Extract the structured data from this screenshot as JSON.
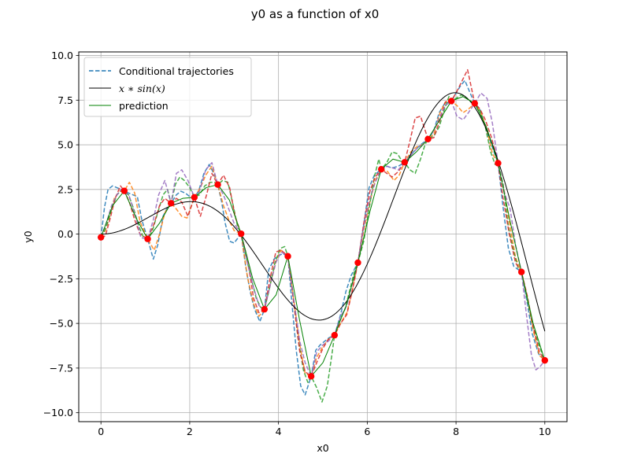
{
  "chart_data": {
    "type": "line",
    "title": "y0 as a function of x0",
    "xlabel": "x0",
    "ylabel": "y0",
    "xlim": [
      -0.5,
      10.5
    ],
    "ylim": [
      -10.5,
      10.2
    ],
    "xticks": [
      0,
      2,
      4,
      6,
      8,
      10
    ],
    "xtick_labels": [
      "0",
      "2",
      "4",
      "6",
      "8",
      "10"
    ],
    "yticks": [
      -10.0,
      -7.5,
      -5.0,
      -2.5,
      0.0,
      2.5,
      5.0,
      7.5,
      10.0
    ],
    "ytick_labels": [
      "−10.0",
      "−7.5",
      "−5.0",
      "−2.5",
      "0.0",
      "2.5",
      "5.0",
      "7.5",
      "10.0"
    ],
    "grid": true,
    "legend_position": "top-left",
    "legend": [
      {
        "label": "Conditional trajectories",
        "style": "dashed",
        "color": "#1f77b4"
      },
      {
        "label": "x ∗ sin(x)",
        "style": "solid",
        "color": "#000000"
      },
      {
        "label": "prediction",
        "style": "solid",
        "color": "#008000"
      }
    ],
    "colors": {
      "grid": "#b0b0b0",
      "observations": "#ff0000",
      "prediction": "#008000",
      "reference": "#000000",
      "trajectories": [
        "#1f77b4",
        "#ff7f0e",
        "#2ca02c",
        "#d62728",
        "#9467bd"
      ]
    },
    "observations": {
      "x": [
        0.0,
        0.526,
        1.053,
        1.579,
        2.105,
        2.632,
        3.158,
        3.684,
        4.211,
        4.737,
        5.263,
        5.789,
        6.316,
        6.842,
        7.368,
        7.895,
        8.421,
        8.947,
        9.474,
        10.0
      ],
      "y": [
        -0.18,
        2.42,
        -0.27,
        1.73,
        2.06,
        2.77,
        0.02,
        -4.21,
        -1.24,
        -7.96,
        -5.66,
        -1.6,
        3.63,
        4.02,
        5.32,
        7.45,
        7.32,
        3.97,
        -2.12,
        -7.07
      ]
    },
    "reference_curve": {
      "name": "x ∗ sin(x)",
      "function": "x*sin(x)",
      "domain": [
        0,
        10
      ]
    },
    "series": [
      {
        "name": "prediction",
        "x": [
          0.0,
          0.263,
          0.526,
          0.79,
          1.053,
          1.316,
          1.579,
          1.842,
          2.105,
          2.368,
          2.632,
          2.895,
          3.158,
          3.421,
          3.684,
          3.947,
          4.211,
          4.474,
          4.737,
          5.0,
          5.263,
          5.526,
          5.789,
          6.053,
          6.316,
          6.579,
          6.842,
          7.105,
          7.368,
          7.632,
          7.895,
          8.158,
          8.421,
          8.684,
          8.947,
          9.211,
          9.474,
          9.737,
          10.0
        ],
        "y": [
          -0.18,
          1.6,
          2.42,
          0.9,
          -0.27,
          0.6,
          1.73,
          2.0,
          2.06,
          2.6,
          2.77,
          1.9,
          0.02,
          -2.5,
          -4.21,
          -3.4,
          -1.24,
          -4.8,
          -7.96,
          -7.2,
          -5.66,
          -4.0,
          -1.6,
          1.2,
          3.63,
          4.2,
          4.02,
          4.6,
          5.32,
          6.4,
          7.45,
          7.7,
          7.32,
          6.0,
          3.97,
          0.8,
          -2.12,
          -5.0,
          -7.07
        ]
      },
      {
        "name": "trajectory 1",
        "x": [
          0.0,
          0.08,
          0.16,
          0.26,
          0.36,
          0.46,
          0.526,
          0.62,
          0.72,
          0.82,
          0.92,
          1.053,
          1.18,
          1.28,
          1.4,
          1.5,
          1.579,
          1.7,
          1.8,
          1.9,
          2.0,
          2.105,
          2.2,
          2.32,
          2.44,
          2.54,
          2.632,
          2.72,
          2.8,
          2.9,
          3.0,
          3.158,
          3.26,
          3.36,
          3.46,
          3.58,
          3.684,
          3.78,
          3.9,
          4.0,
          4.1,
          4.211,
          4.3,
          4.4,
          4.5,
          4.6,
          4.737,
          4.84,
          4.94,
          5.04,
          5.14,
          5.263,
          5.4,
          5.52,
          5.64,
          5.789,
          5.92,
          6.04,
          6.16,
          6.316,
          6.44,
          6.56,
          6.7,
          6.842,
          6.96,
          7.08,
          7.2,
          7.368,
          7.5,
          7.62,
          7.74,
          7.895,
          8.0,
          8.1,
          8.2,
          8.3,
          8.421,
          8.54,
          8.66,
          8.8,
          8.947,
          9.06,
          9.18,
          9.3,
          9.474,
          9.6,
          9.72,
          9.86,
          10.0
        ],
        "y": [
          -0.18,
          1.5,
          2.5,
          2.7,
          2.6,
          2.5,
          2.42,
          2.3,
          2.2,
          2.1,
          0.8,
          -0.27,
          -1.4,
          -0.6,
          1.0,
          1.5,
          1.73,
          2.2,
          2.4,
          2.3,
          2.1,
          2.06,
          2.4,
          3.4,
          3.9,
          3.4,
          2.77,
          1.8,
          0.6,
          -0.4,
          -0.5,
          0.02,
          -1.8,
          -3.2,
          -4.2,
          -4.9,
          -4.21,
          -2.0,
          -1.4,
          -1.2,
          -1.1,
          -1.24,
          -3.8,
          -6.5,
          -8.5,
          -9.0,
          -7.96,
          -6.5,
          -6.2,
          -6.0,
          -5.8,
          -5.66,
          -4.5,
          -3.2,
          -2.3,
          -1.6,
          0.5,
          2.6,
          3.3,
          3.63,
          3.8,
          3.7,
          3.8,
          4.02,
          4.4,
          4.7,
          5.0,
          5.32,
          5.8,
          6.8,
          7.3,
          7.45,
          7.9,
          8.3,
          8.6,
          8.0,
          7.32,
          7.0,
          6.0,
          5.0,
          3.97,
          1.5,
          -0.8,
          -1.8,
          -2.12,
          -3.8,
          -5.6,
          -6.7,
          -7.07
        ]
      },
      {
        "name": "trajectory 2",
        "x": [
          0.0,
          0.1,
          0.2,
          0.3,
          0.42,
          0.526,
          0.64,
          0.76,
          0.88,
          1.053,
          1.2,
          1.32,
          1.44,
          1.579,
          1.7,
          1.82,
          1.94,
          2.105,
          2.24,
          2.36,
          2.5,
          2.632,
          2.76,
          2.88,
          3.0,
          3.158,
          3.3,
          3.44,
          3.56,
          3.684,
          3.8,
          3.94,
          4.06,
          4.211,
          4.34,
          4.48,
          4.6,
          4.737,
          4.86,
          5.0,
          5.12,
          5.263,
          5.4,
          5.54,
          5.66,
          5.789,
          5.92,
          6.06,
          6.18,
          6.316,
          6.46,
          6.6,
          6.72,
          6.842,
          6.98,
          7.12,
          7.24,
          7.368,
          7.5,
          7.64,
          7.76,
          7.895,
          8.02,
          8.16,
          8.28,
          8.421,
          8.56,
          8.7,
          8.82,
          8.947,
          9.08,
          9.22,
          9.34,
          9.474,
          9.6,
          9.74,
          9.88,
          10.0
        ],
        "y": [
          -0.18,
          0.2,
          1.0,
          2.0,
          2.4,
          2.42,
          2.9,
          2.3,
          0.7,
          -0.27,
          -0.9,
          0.0,
          1.2,
          1.73,
          1.4,
          1.0,
          0.9,
          2.06,
          2.6,
          3.3,
          3.8,
          2.77,
          1.6,
          0.8,
          0.2,
          0.02,
          -2.4,
          -3.9,
          -4.6,
          -4.21,
          -3.0,
          -1.5,
          -0.9,
          -1.24,
          -3.6,
          -6.2,
          -7.8,
          -7.96,
          -6.9,
          -6.3,
          -5.9,
          -5.66,
          -5.0,
          -4.4,
          -3.2,
          -1.6,
          0.2,
          1.8,
          3.0,
          3.63,
          3.5,
          3.0,
          3.3,
          4.02,
          4.6,
          4.9,
          5.0,
          5.32,
          5.6,
          6.8,
          7.4,
          7.45,
          7.2,
          6.8,
          7.0,
          7.32,
          6.8,
          5.8,
          4.5,
          3.97,
          2.5,
          0.4,
          -1.3,
          -2.12,
          -3.5,
          -5.4,
          -6.8,
          -7.07
        ]
      },
      {
        "name": "trajectory 3",
        "x": [
          0.0,
          0.12,
          0.24,
          0.36,
          0.44,
          0.526,
          0.62,
          0.74,
          0.86,
          0.96,
          1.053,
          1.16,
          1.28,
          1.4,
          1.5,
          1.579,
          1.68,
          1.78,
          1.88,
          2.0,
          2.105,
          2.22,
          2.34,
          2.46,
          2.56,
          2.632,
          2.74,
          2.86,
          2.98,
          3.08,
          3.158,
          3.26,
          3.38,
          3.5,
          3.6,
          3.684,
          3.8,
          3.92,
          4.04,
          4.14,
          4.211,
          4.32,
          4.44,
          4.56,
          4.66,
          4.737,
          4.86,
          4.98,
          5.1,
          5.2,
          5.263,
          5.38,
          5.5,
          5.62,
          5.72,
          5.789,
          5.92,
          6.04,
          6.16,
          6.26,
          6.316,
          6.44,
          6.56,
          6.68,
          6.78,
          6.842,
          6.96,
          7.08,
          7.2,
          7.3,
          7.368,
          7.5,
          7.62,
          7.74,
          7.84,
          7.895,
          8.0,
          8.12,
          8.24,
          8.34,
          8.421,
          8.54,
          8.66,
          8.78,
          8.88,
          8.947,
          9.06,
          9.18,
          9.3,
          9.4,
          9.474,
          9.6,
          9.72,
          9.84,
          9.94,
          10.0
        ],
        "y": [
          -0.18,
          0.4,
          1.4,
          2.2,
          2.4,
          2.42,
          2.2,
          1.4,
          0.4,
          -0.2,
          -0.27,
          0.2,
          1.2,
          2.2,
          2.5,
          1.73,
          2.8,
          3.2,
          3.0,
          2.6,
          2.06,
          2.2,
          2.7,
          2.9,
          2.9,
          2.77,
          3.0,
          2.9,
          1.6,
          0.4,
          0.02,
          -1.2,
          -2.4,
          -3.6,
          -4.1,
          -4.21,
          -3.0,
          -1.6,
          -0.8,
          -0.7,
          -1.24,
          -3.2,
          -5.8,
          -7.6,
          -8.3,
          -7.96,
          -8.6,
          -9.4,
          -8.5,
          -6.8,
          -5.66,
          -4.8,
          -4.2,
          -3.0,
          -2.0,
          -1.6,
          -0.4,
          1.4,
          3.2,
          4.2,
          3.63,
          4.0,
          4.6,
          4.5,
          4.1,
          4.02,
          3.6,
          3.4,
          4.2,
          5.0,
          5.32,
          5.5,
          6.0,
          7.0,
          7.7,
          7.45,
          7.6,
          7.8,
          7.6,
          7.4,
          7.32,
          6.9,
          6.0,
          4.6,
          3.9,
          3.97,
          2.8,
          0.4,
          -1.0,
          -1.9,
          -2.12,
          -3.6,
          -5.0,
          -6.0,
          -6.7,
          -7.07
        ]
      },
      {
        "name": "trajectory 4",
        "x": [
          0.0,
          0.1,
          0.2,
          0.32,
          0.44,
          0.526,
          0.64,
          0.76,
          0.88,
          1.053,
          1.2,
          1.32,
          1.44,
          1.579,
          1.7,
          1.82,
          1.96,
          2.105,
          2.24,
          2.38,
          2.5,
          2.632,
          2.76,
          2.9,
          3.02,
          3.158,
          3.3,
          3.44,
          3.56,
          3.684,
          3.8,
          3.94,
          4.06,
          4.211,
          4.34,
          4.48,
          4.6,
          4.737,
          4.86,
          5.0,
          5.12,
          5.263,
          5.4,
          5.54,
          5.66,
          5.789,
          5.92,
          6.06,
          6.18,
          6.316,
          6.44,
          6.56,
          6.7,
          6.842,
          6.96,
          7.08,
          7.2,
          7.368,
          7.5,
          7.64,
          7.76,
          7.895,
          8.02,
          8.14,
          8.26,
          8.421,
          8.54,
          8.66,
          8.8,
          8.947,
          9.06,
          9.2,
          9.34,
          9.474,
          9.6,
          9.74,
          9.88,
          10.0
        ],
        "y": [
          -0.18,
          -0.1,
          0.8,
          2.0,
          2.7,
          2.42,
          1.8,
          0.8,
          0.0,
          -0.27,
          0.6,
          1.6,
          2.0,
          1.73,
          2.0,
          1.8,
          1.0,
          2.06,
          1.0,
          2.2,
          3.4,
          2.77,
          3.3,
          2.6,
          1.0,
          0.02,
          -1.4,
          -3.6,
          -4.4,
          -4.21,
          -2.6,
          -1.0,
          -0.9,
          -1.24,
          -3.8,
          -6.6,
          -7.7,
          -7.96,
          -7.2,
          -6.4,
          -5.9,
          -5.66,
          -5.0,
          -4.5,
          -3.2,
          -1.6,
          0.6,
          2.4,
          3.2,
          3.63,
          3.4,
          3.2,
          3.5,
          4.02,
          5.2,
          6.5,
          6.6,
          5.32,
          5.4,
          6.4,
          7.4,
          7.45,
          8.0,
          8.6,
          9.2,
          7.32,
          7.0,
          6.4,
          5.4,
          3.97,
          2.0,
          0.0,
          -1.6,
          -2.12,
          -3.4,
          -5.2,
          -6.6,
          -7.07
        ]
      },
      {
        "name": "trajectory 5",
        "x": [
          0.0,
          0.12,
          0.24,
          0.36,
          0.46,
          0.526,
          0.64,
          0.78,
          0.9,
          1.053,
          1.18,
          1.3,
          1.44,
          1.579,
          1.7,
          1.82,
          1.96,
          2.105,
          2.22,
          2.36,
          2.5,
          2.632,
          2.76,
          2.88,
          3.0,
          3.158,
          3.3,
          3.44,
          3.56,
          3.684,
          3.8,
          3.94,
          4.06,
          4.211,
          4.34,
          4.48,
          4.6,
          4.737,
          4.86,
          5.0,
          5.12,
          5.263,
          5.4,
          5.54,
          5.66,
          5.789,
          5.92,
          6.06,
          6.18,
          6.316,
          6.44,
          6.58,
          6.7,
          6.842,
          6.98,
          7.12,
          7.24,
          7.368,
          7.5,
          7.64,
          7.76,
          7.895,
          8.02,
          8.16,
          8.28,
          8.421,
          8.56,
          8.7,
          8.82,
          8.947,
          9.08,
          9.22,
          9.34,
          9.474,
          9.6,
          9.7,
          9.8,
          9.9,
          10.0
        ],
        "y": [
          -0.18,
          0.6,
          1.6,
          2.2,
          2.5,
          2.42,
          2.1,
          1.0,
          -0.2,
          -0.27,
          0.8,
          2.2,
          3.0,
          1.73,
          3.4,
          3.6,
          3.0,
          2.06,
          2.4,
          3.6,
          4.0,
          2.77,
          2.2,
          1.4,
          0.6,
          0.02,
          -1.6,
          -3.0,
          -4.0,
          -4.21,
          -3.0,
          -1.6,
          -1.0,
          -1.24,
          -3.6,
          -6.0,
          -7.2,
          -7.96,
          -6.6,
          -6.2,
          -6.0,
          -5.66,
          -4.6,
          -4.0,
          -2.8,
          -1.6,
          0.4,
          2.0,
          2.9,
          3.63,
          3.8,
          3.7,
          3.6,
          4.02,
          4.4,
          4.8,
          5.0,
          5.32,
          5.8,
          6.6,
          7.2,
          7.45,
          6.6,
          6.4,
          6.8,
          7.32,
          7.9,
          7.6,
          6.2,
          3.97,
          2.4,
          1.4,
          -0.6,
          -2.12,
          -4.8,
          -6.8,
          -7.6,
          -7.4,
          -7.07
        ]
      }
    ]
  }
}
